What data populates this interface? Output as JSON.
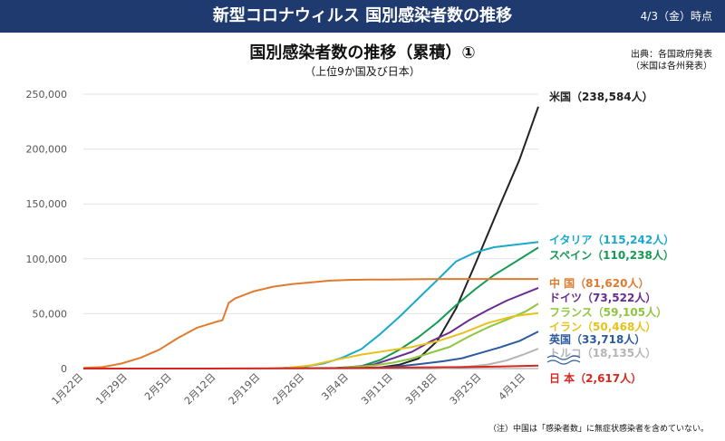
{
  "header": {
    "title": "新型コロナウィルス 国別感染者数の推移",
    "date": "4/3（金）時点"
  },
  "source": {
    "line1": "出典：各国政府発表",
    "line2": "（米国は各州発表）"
  },
  "note": "（注）中国は「感染者数」に無症状感染者を含めていない。",
  "chart_data": {
    "type": "line",
    "title": "国別感染者数の推移（累積）①",
    "subtitle": "（上位9か国及び日本）",
    "xlabel": "",
    "ylabel": "",
    "ylim": [
      0,
      250000
    ],
    "yticks": [
      0,
      50000,
      100000,
      150000,
      200000,
      250000
    ],
    "ytick_labels": [
      "0",
      "50,000",
      "100,000",
      "150,000",
      "200,000",
      "250,000"
    ],
    "x_range": [
      "1月22日",
      "4月3日"
    ],
    "xticks": [
      "1月22日",
      "1月29日",
      "2月5日",
      "2月12日",
      "2月19日",
      "2月26日",
      "3月4日",
      "3月11日",
      "3月18日",
      "3月25日",
      "4月1日"
    ],
    "grid": "horizontal",
    "series": [
      {
        "name": "米国",
        "label": "米国（238,584人）",
        "color": "#222222",
        "points": [
          [
            0,
            1
          ],
          [
            40,
            100
          ],
          [
            47,
            1000
          ],
          [
            50,
            3500
          ],
          [
            53,
            9000
          ],
          [
            56,
            25000
          ],
          [
            59,
            55000
          ],
          [
            62,
            95000
          ],
          [
            66,
            150000
          ],
          [
            69,
            190000
          ],
          [
            72,
            238584
          ]
        ]
      },
      {
        "name": "イタリア",
        "label": "イタリア（115,242人）",
        "color": "#18a9cc",
        "points": [
          [
            0,
            0
          ],
          [
            29,
            0
          ],
          [
            31,
            300
          ],
          [
            35,
            1700
          ],
          [
            38,
            4600
          ],
          [
            41,
            10000
          ],
          [
            44,
            17700
          ],
          [
            47,
            31500
          ],
          [
            50,
            47000
          ],
          [
            53,
            63900
          ],
          [
            56,
            80500
          ],
          [
            59,
            97700
          ],
          [
            62,
            105800
          ],
          [
            65,
            110600
          ],
          [
            72,
            115242
          ]
        ]
      },
      {
        "name": "スペイン",
        "label": "スペイン（110,238人）",
        "color": "#159a52",
        "points": [
          [
            0,
            0
          ],
          [
            38,
            0
          ],
          [
            40,
            500
          ],
          [
            44,
            2200
          ],
          [
            47,
            7800
          ],
          [
            50,
            17100
          ],
          [
            53,
            28500
          ],
          [
            56,
            42000
          ],
          [
            59,
            57800
          ],
          [
            62,
            72200
          ],
          [
            65,
            85200
          ],
          [
            68,
            95900
          ],
          [
            72,
            110238
          ]
        ]
      },
      {
        "name": "中国",
        "label": "中 国（81,620人）",
        "color": "#e07b2e",
        "points": [
          [
            0,
            550
          ],
          [
            3,
            1300
          ],
          [
            6,
            4500
          ],
          [
            9,
            9700
          ],
          [
            12,
            17200
          ],
          [
            15,
            28000
          ],
          [
            18,
            37200
          ],
          [
            21,
            42600
          ],
          [
            22,
            44000
          ],
          [
            23,
            59800
          ],
          [
            24,
            63900
          ],
          [
            27,
            70500
          ],
          [
            30,
            74600
          ],
          [
            33,
            77000
          ],
          [
            36,
            78500
          ],
          [
            39,
            80100
          ],
          [
            42,
            80800
          ],
          [
            45,
            81050
          ],
          [
            48,
            81100
          ],
          [
            51,
            81300
          ],
          [
            54,
            81500
          ],
          [
            57,
            81600
          ],
          [
            72,
            81620
          ]
        ]
      },
      {
        "name": "ドイツ",
        "label": "ドイツ（73,522人）",
        "color": "#6a2c91",
        "points": [
          [
            0,
            0
          ],
          [
            40,
            0
          ],
          [
            42,
            1000
          ],
          [
            46,
            3700
          ],
          [
            49,
            9300
          ],
          [
            52,
            15300
          ],
          [
            55,
            24800
          ],
          [
            58,
            32900
          ],
          [
            61,
            43900
          ],
          [
            64,
            53300
          ],
          [
            67,
            61900
          ],
          [
            72,
            73522
          ]
        ]
      },
      {
        "name": "フランス",
        "label": "フランス（59,105人）",
        "color": "#8ec63f",
        "points": [
          [
            0,
            0
          ],
          [
            40,
            0
          ],
          [
            42,
            1200
          ],
          [
            46,
            2900
          ],
          [
            49,
            5400
          ],
          [
            52,
            9100
          ],
          [
            55,
            14400
          ],
          [
            58,
            19800
          ],
          [
            61,
            29200
          ],
          [
            64,
            37500
          ],
          [
            67,
            44500
          ],
          [
            70,
            52100
          ],
          [
            72,
            59105
          ]
        ]
      },
      {
        "name": "イラン",
        "label": "イラン（50,468人）",
        "color": "#e8c21c",
        "points": [
          [
            0,
            0
          ],
          [
            29,
            0
          ],
          [
            32,
            500
          ],
          [
            36,
            2900
          ],
          [
            40,
            8000
          ],
          [
            44,
            12700
          ],
          [
            48,
            16200
          ],
          [
            52,
            19600
          ],
          [
            56,
            24800
          ],
          [
            60,
            32300
          ],
          [
            64,
            41500
          ],
          [
            68,
            47600
          ],
          [
            72,
            50468
          ]
        ]
      },
      {
        "name": "英国",
        "label": "英国（33,718人）",
        "color": "#2b5aa0",
        "points": [
          [
            0,
            0
          ],
          [
            40,
            0
          ],
          [
            45,
            500
          ],
          [
            49,
            1600
          ],
          [
            53,
            3900
          ],
          [
            57,
            6700
          ],
          [
            60,
            9500
          ],
          [
            63,
            14500
          ],
          [
            66,
            19500
          ],
          [
            69,
            25100
          ],
          [
            72,
            33718
          ]
        ]
      },
      {
        "name": "トルコ",
        "label": "トルコ（18,135人）",
        "color": "#b5b5b5",
        "points": [
          [
            0,
            0
          ],
          [
            55,
            0
          ],
          [
            58,
            700
          ],
          [
            61,
            1800
          ],
          [
            64,
            3600
          ],
          [
            67,
            7400
          ],
          [
            70,
            13500
          ],
          [
            72,
            18135
          ]
        ]
      },
      {
        "name": "日本",
        "label": "日 本（2,617人）",
        "color": "#d7261e",
        "points": [
          [
            0,
            2
          ],
          [
            20,
            30
          ],
          [
            30,
            190
          ],
          [
            40,
            500
          ],
          [
            50,
            900
          ],
          [
            60,
            1300
          ],
          [
            66,
            1900
          ],
          [
            72,
            2617
          ]
        ]
      }
    ]
  }
}
